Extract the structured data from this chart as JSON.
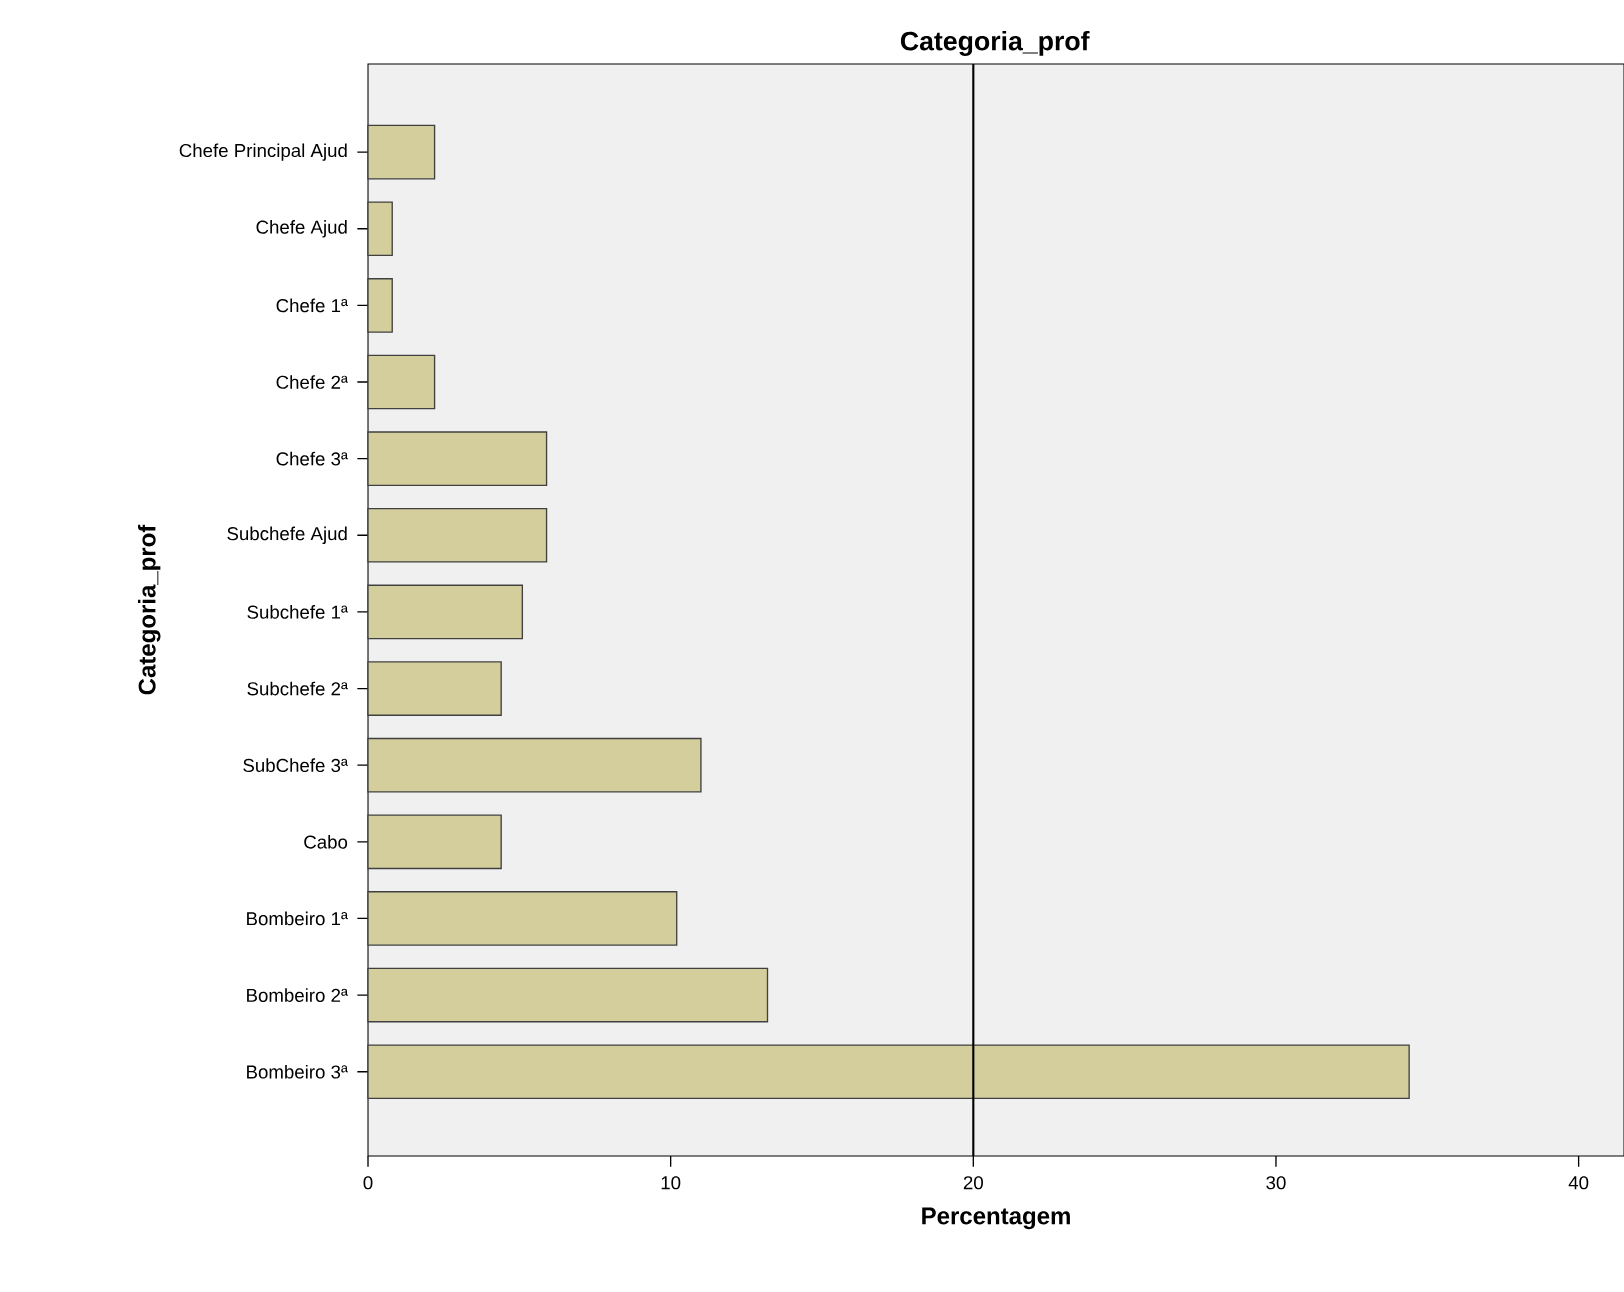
{
  "chart_data": {
    "type": "bar",
    "orientation": "horizontal",
    "title": "Categoria_prof",
    "xlabel": "Percentagem",
    "ylabel": "Categoria_prof",
    "categories": [
      "Chefe Principal Ajud",
      "Chefe Ajud",
      "Chefe 1ª",
      "Chefe 2ª",
      "Chefe 3ª",
      "Subchefe Ajud",
      "Subchefe 1ª",
      "Subchefe 2ª",
      "SubChefe 3ª",
      "Cabo",
      "Bombeiro 1ª",
      "Bombeiro 2ª",
      "Bombeiro 3ª"
    ],
    "values": [
      2.2,
      0.8,
      0.8,
      2.2,
      5.9,
      5.9,
      5.1,
      4.4,
      11.0,
      4.4,
      10.2,
      13.2,
      34.4
    ],
    "color": "#d3ce9c",
    "xlim": [
      0,
      41.5
    ],
    "xticks": [
      0,
      10,
      20,
      30,
      40
    ],
    "ref_lines": [
      {
        "axis": "x",
        "value": 20,
        "color": "#000000"
      }
    ],
    "grid": false
  }
}
